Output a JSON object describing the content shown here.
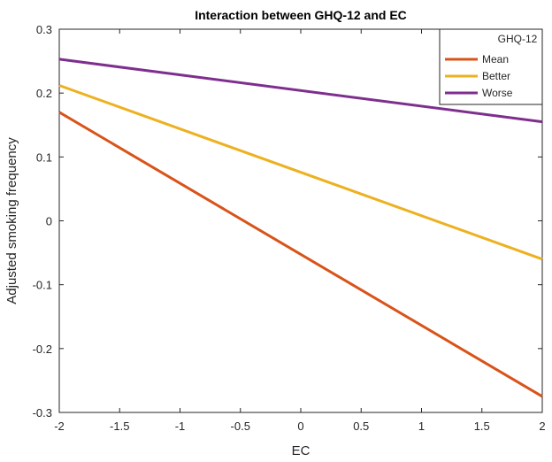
{
  "chart_data": {
    "type": "line",
    "title": "Interaction between GHQ-12 and EC",
    "xlabel": "EC",
    "ylabel": "Adjusted smoking frequency",
    "xlim": [
      -2,
      2
    ],
    "ylim": [
      -0.3,
      0.3
    ],
    "xticks": [
      -2,
      -1.5,
      -1,
      -0.5,
      0,
      0.5,
      1,
      1.5,
      2
    ],
    "xtick_labels": [
      "-2",
      "-1.5",
      "-1",
      "-0.5",
      "0",
      "0.5",
      "1",
      "1.5",
      "2"
    ],
    "yticks": [
      -0.3,
      -0.2,
      -0.1,
      0,
      0.1,
      0.2,
      0.3
    ],
    "ytick_labels": [
      "-0.3",
      "-0.2",
      "-0.1",
      "0",
      "0.1",
      "0.2",
      "0.3"
    ],
    "grid": false,
    "legend": {
      "title": "GHQ-12",
      "position": "top-right"
    },
    "series": [
      {
        "name": "Mean",
        "color": "#D95319",
        "x": [
          -2,
          2
        ],
        "y": [
          0.17,
          -0.275
        ]
      },
      {
        "name": "Better",
        "color": "#EDB120",
        "x": [
          -2,
          2
        ],
        "y": [
          0.212,
          -0.06
        ]
      },
      {
        "name": "Worse",
        "color": "#7E2F8E",
        "x": [
          -2,
          2
        ],
        "y": [
          0.253,
          0.155
        ]
      }
    ]
  }
}
